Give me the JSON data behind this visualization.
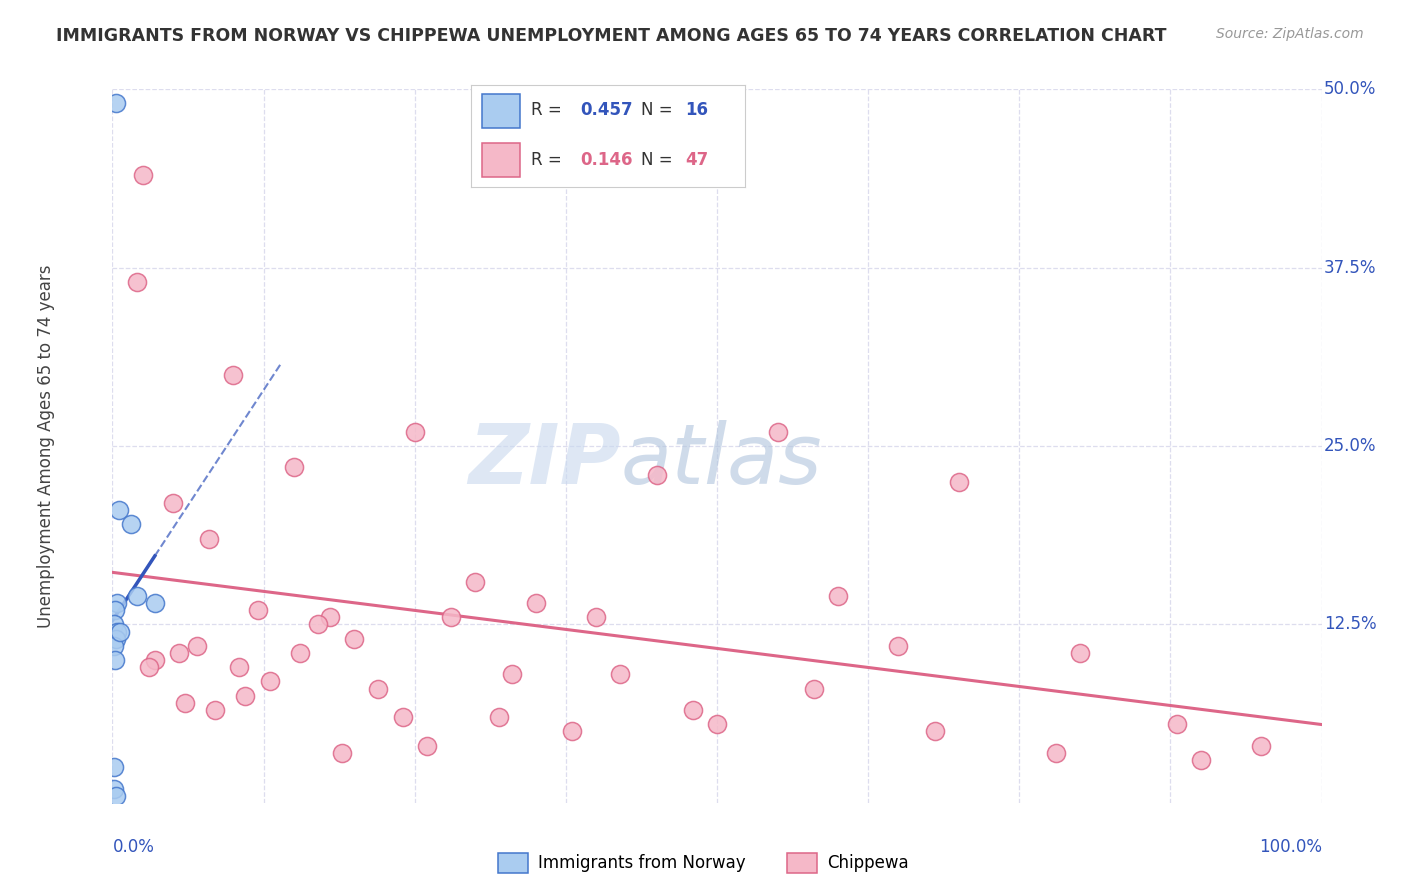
{
  "title": "IMMIGRANTS FROM NORWAY VS CHIPPEWA UNEMPLOYMENT AMONG AGES 65 TO 74 YEARS CORRELATION CHART",
  "source": "Source: ZipAtlas.com",
  "ylabel": "Unemployment Among Ages 65 to 74 years",
  "xlim": [
    0,
    100
  ],
  "ylim": [
    0,
    50
  ],
  "yticks": [
    0,
    12.5,
    25.0,
    37.5,
    50.0
  ],
  "ytick_labels": [
    "",
    "12.5%",
    "25.0%",
    "37.5%",
    "50.0%"
  ],
  "norway_R": "0.457",
  "norway_N": "16",
  "chippewa_R": "0.146",
  "chippewa_N": "47",
  "norway_fill": "#AACCF0",
  "chippewa_fill": "#F5B8C8",
  "norway_edge": "#4477CC",
  "chippewa_edge": "#DD6688",
  "norway_line": "#3355BB",
  "chippewa_line": "#DD6688",
  "grid_color": "#DDDDEE",
  "legend_label_norway": "Immigrants from Norway",
  "legend_label_chippewa": "Chippewa",
  "norway_x": [
    0.3,
    0.5,
    1.5,
    2.0,
    0.4,
    0.2,
    0.15,
    0.35,
    0.25,
    0.1,
    0.6,
    0.2,
    3.5,
    0.1,
    0.15,
    0.25
  ],
  "norway_y": [
    49.0,
    20.5,
    19.5,
    14.5,
    14.0,
    13.5,
    12.5,
    12.0,
    11.5,
    11.0,
    12.0,
    10.0,
    14.0,
    2.5,
    1.0,
    0.5
  ],
  "chippewa_x": [
    2.5,
    2.0,
    10.0,
    15.0,
    5.0,
    8.0,
    25.0,
    12.0,
    18.0,
    30.0,
    45.0,
    55.0,
    70.0,
    80.0,
    95.0,
    60.0,
    35.0,
    40.0,
    50.0,
    65.0,
    5.5,
    10.5,
    20.0,
    28.0,
    33.0,
    42.0,
    22.0,
    15.5,
    8.5,
    3.5,
    6.0,
    11.0,
    17.0,
    24.0,
    38.0,
    48.0,
    58.0,
    68.0,
    78.0,
    88.0,
    3.0,
    7.0,
    13.0,
    19.0,
    26.0,
    32.0,
    90.0
  ],
  "chippewa_y": [
    44.0,
    36.5,
    30.0,
    23.5,
    21.0,
    18.5,
    26.0,
    13.5,
    13.0,
    15.5,
    23.0,
    26.0,
    22.5,
    10.5,
    4.0,
    14.5,
    14.0,
    13.0,
    5.5,
    11.0,
    10.5,
    9.5,
    11.5,
    13.0,
    9.0,
    9.0,
    8.0,
    10.5,
    6.5,
    10.0,
    7.0,
    7.5,
    12.5,
    6.0,
    5.0,
    6.5,
    8.0,
    5.0,
    3.5,
    5.5,
    9.5,
    11.0,
    8.5,
    3.5,
    4.0,
    6.0,
    3.0
  ],
  "watermark_zip": "ZIP",
  "watermark_atlas": "atlas",
  "watermark_color_zip": "#C8D8E8",
  "watermark_color_atlas": "#B0C8E0",
  "background": "#FFFFFF",
  "accent_blue": "#3355BB"
}
